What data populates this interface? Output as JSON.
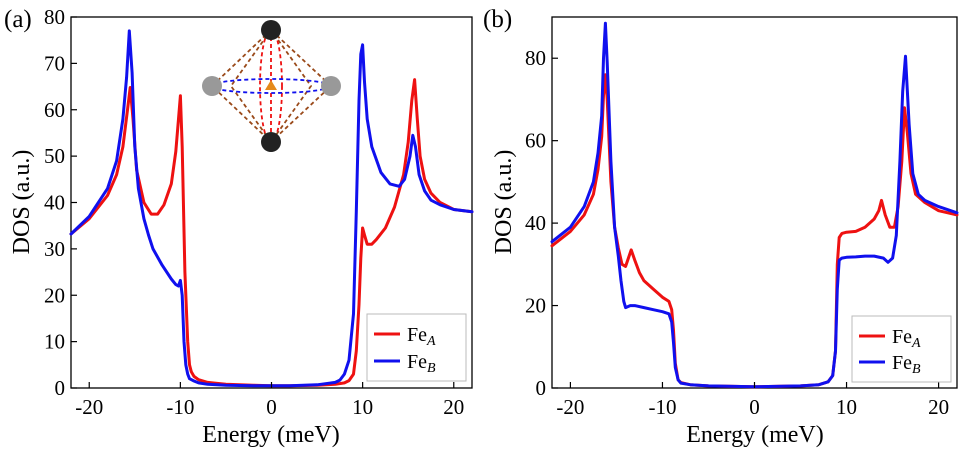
{
  "figure": {
    "panel_labels": [
      "(a)",
      "(b)"
    ]
  },
  "colors": {
    "fe_a": "#ee1111",
    "fe_b": "#1010ee",
    "axis": "#000000",
    "inset_red": "#ee1111",
    "inset_blue": "#1010ee",
    "inset_brown": "#9a4a1a",
    "inset_dark_atom": "#222222",
    "inset_grey_atom": "#999999",
    "inset_center": "#e58a1a"
  },
  "inset": {
    "dark_atoms": 2,
    "grey_atoms": 2,
    "center_marker": "triangle"
  },
  "chart_data": [
    {
      "type": "line",
      "panel": "(a)",
      "xlabel": "Energy (meV)",
      "ylabel": "DOS (a.u.)",
      "xlim": [
        -22,
        22
      ],
      "ylim": [
        0,
        80
      ],
      "xticks": [
        -20,
        -10,
        0,
        10,
        20
      ],
      "xtick_labels": [
        "-20",
        "-10",
        "0",
        "10",
        "20"
      ],
      "yticks": [
        0,
        10,
        20,
        30,
        40,
        50,
        60,
        70,
        80
      ],
      "ytick_labels": [
        "0",
        "10",
        "20",
        "30",
        "40",
        "50",
        "60",
        "70",
        "80"
      ],
      "legend": {
        "placement": "bottom-right",
        "entries": [
          {
            "base": "Fe",
            "sub": "A"
          },
          {
            "base": "Fe",
            "sub": "B"
          }
        ]
      },
      "series": [
        {
          "name": "FeA",
          "color": "#ee1111",
          "x": [
            -22,
            -20,
            -18,
            -17,
            -16.3,
            -15.8,
            -15.5,
            -15.2,
            -14.8,
            -14,
            -13.2,
            -12.5,
            -11.8,
            -11,
            -10.5,
            -10.2,
            -10,
            -9.8,
            -9.5,
            -9.2,
            -9,
            -8.8,
            -8.5,
            -8,
            -7,
            -5,
            -2,
            0,
            2,
            5,
            7,
            8,
            8.5,
            9,
            9.3,
            9.6,
            9.8,
            10,
            10.2,
            10.5,
            11,
            11.5,
            12.5,
            13.5,
            14.5,
            15,
            15.4,
            15.7,
            16,
            16.3,
            16.8,
            17.5,
            18.5,
            20,
            22
          ],
          "y": [
            33.2,
            36.5,
            41.5,
            46,
            52,
            60,
            64.8,
            58,
            47,
            40,
            37.5,
            37.5,
            39.5,
            44,
            51,
            58,
            63,
            52,
            25,
            10,
            5,
            3.5,
            2.5,
            1.8,
            1.2,
            0.8,
            0.6,
            0.5,
            0.5,
            0.6,
            0.8,
            1.1,
            1.6,
            3,
            8,
            18,
            28,
            34.5,
            33,
            31,
            31,
            32,
            34.5,
            39,
            46,
            53,
            62,
            66.5,
            58,
            50,
            45,
            42,
            40,
            38.5,
            38
          ]
        },
        {
          "name": "FeB",
          "color": "#1010ee",
          "x": [
            -22,
            -20,
            -18,
            -17,
            -16.3,
            -15.9,
            -15.6,
            -15.3,
            -15,
            -14.6,
            -14,
            -13.5,
            -13,
            -12,
            -11,
            -10.5,
            -10.2,
            -10,
            -9.8,
            -9.6,
            -9.4,
            -9.2,
            -9,
            -8.5,
            -8,
            -7,
            -5,
            -2,
            0,
            2,
            5,
            7,
            7.5,
            8,
            8.5,
            9,
            9.3,
            9.6,
            9.8,
            10,
            10.2,
            10.5,
            11,
            12,
            13,
            14,
            14.6,
            15.2,
            15.5,
            15.8,
            16.2,
            16.8,
            17.5,
            18.5,
            20,
            22
          ],
          "y": [
            33.2,
            37,
            43,
            49,
            58,
            67,
            77,
            68,
            52,
            43,
            36.5,
            33,
            30,
            26.5,
            23.5,
            22.3,
            22,
            23.2,
            20,
            10,
            5,
            3,
            2,
            1.5,
            1.1,
            0.8,
            0.6,
            0.5,
            0.5,
            0.5,
            0.7,
            1.2,
            1.7,
            3,
            6,
            16,
            38,
            62,
            72,
            74,
            66,
            58,
            52,
            46.5,
            44,
            43.5,
            45,
            50,
            54.5,
            52,
            46,
            42.5,
            40.5,
            39.5,
            38.5,
            38
          ]
        }
      ]
    },
    {
      "type": "line",
      "panel": "(b)",
      "xlabel": "Energy (meV)",
      "ylabel": "DOS (a.u.)",
      "xlim": [
        -22,
        22
      ],
      "ylim": [
        0,
        90
      ],
      "xticks": [
        -20,
        -10,
        0,
        10,
        20
      ],
      "xtick_labels": [
        "-20",
        "-10",
        "0",
        "10",
        "20"
      ],
      "yticks": [
        0,
        20,
        40,
        60,
        80
      ],
      "ytick_labels": [
        "0",
        "20",
        "40",
        "60",
        "80"
      ],
      "legend": {
        "placement": "bottom-right",
        "entries": [
          {
            "base": "Fe",
            "sub": "A"
          },
          {
            "base": "Fe",
            "sub": "B"
          }
        ]
      },
      "series": [
        {
          "name": "FeA",
          "color": "#ee1111",
          "x": [
            -22,
            -20,
            -18.5,
            -17.5,
            -17,
            -16.6,
            -16.4,
            -16.2,
            -16,
            -15.6,
            -15.2,
            -14.8,
            -14.4,
            -14,
            -13.7,
            -13.4,
            -13,
            -12.5,
            -12,
            -11,
            -10,
            -9.3,
            -9,
            -8.8,
            -8.6,
            -8.3,
            -8,
            -7,
            -5,
            0,
            5,
            7,
            8,
            8.5,
            8.8,
            9,
            9.2,
            9.5,
            10,
            11,
            12,
            13,
            13.5,
            13.8,
            14.2,
            14.7,
            15.2,
            15.6,
            16,
            16.3,
            16.6,
            17,
            17.5,
            18.5,
            20,
            22
          ],
          "y": [
            34.5,
            38,
            42,
            47,
            53,
            61,
            71,
            76,
            70,
            50,
            39,
            34,
            30,
            29.5,
            31.5,
            33.5,
            31,
            28,
            26,
            24,
            22,
            21,
            19,
            14,
            6,
            2,
            1.3,
            0.8,
            0.5,
            0.3,
            0.5,
            0.8,
            1.5,
            3,
            9,
            30,
            36.5,
            37.5,
            37.8,
            38,
            39,
            41,
            43,
            45.5,
            42,
            39,
            39,
            44,
            55,
            68,
            62,
            52,
            47,
            45,
            43,
            42
          ]
        },
        {
          "name": "FeB",
          "color": "#1010ee",
          "x": [
            -22,
            -20,
            -18.5,
            -17.5,
            -17,
            -16.6,
            -16.4,
            -16.2,
            -16,
            -15.6,
            -15.2,
            -14.8,
            -14.5,
            -14.2,
            -14,
            -13.5,
            -13,
            -12,
            -11,
            -10,
            -9.3,
            -9,
            -8.8,
            -8.6,
            -8.3,
            -8,
            -7,
            -5,
            0,
            5,
            7,
            8,
            8.5,
            8.8,
            9,
            9.2,
            9.5,
            10,
            11,
            12,
            13,
            14,
            14.5,
            15,
            15.4,
            15.8,
            16.1,
            16.4,
            16.8,
            17.2,
            17.8,
            18.5,
            20,
            22
          ],
          "y": [
            35.5,
            39,
            44,
            50,
            57,
            66,
            80,
            88.5,
            79,
            55,
            39,
            32,
            26,
            21,
            19.5,
            20,
            20,
            19.5,
            19,
            18.5,
            18,
            16,
            11,
            5,
            2,
            1.2,
            0.8,
            0.5,
            0.3,
            0.5,
            0.8,
            1.5,
            3,
            9,
            24,
            31,
            31.5,
            31.7,
            31.8,
            32,
            32,
            31.5,
            30.5,
            31.5,
            37,
            55,
            72,
            80.5,
            64,
            52,
            47,
            45.5,
            44,
            42.5
          ]
        }
      ]
    }
  ]
}
